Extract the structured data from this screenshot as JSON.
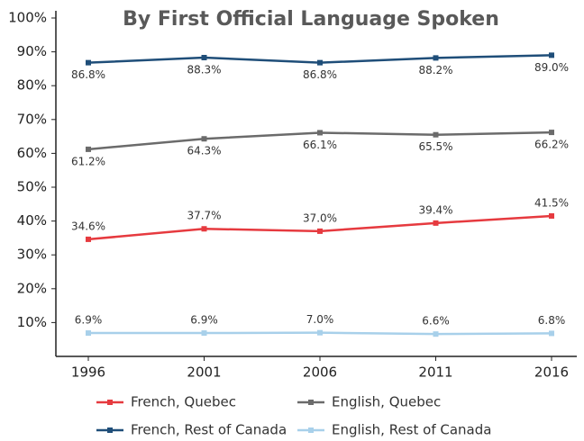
{
  "chart_data": {
    "type": "line",
    "title": "By First Official Language Spoken",
    "categories": [
      "1996",
      "2001",
      "2006",
      "2011",
      "2016"
    ],
    "series": [
      {
        "name": "French, Quebec",
        "color": "#e63a3f",
        "values": [
          34.6,
          37.7,
          37.0,
          39.4,
          41.5
        ],
        "value_labels": [
          "34.6%",
          "37.7%",
          "37.0%",
          "39.4%",
          "41.5%"
        ]
      },
      {
        "name": "English, Quebec",
        "color": "#6b6b6b",
        "values": [
          61.2,
          64.3,
          66.1,
          65.5,
          66.2
        ],
        "value_labels": [
          "61.2%",
          "64.3%",
          "66.1%",
          "65.5%",
          "66.2%"
        ]
      },
      {
        "name": "French, Rest of Canada",
        "color": "#1f4e79",
        "values": [
          86.8,
          88.3,
          86.8,
          88.2,
          89.0
        ],
        "value_labels": [
          "86.8%",
          "88.3%",
          "86.8%",
          "88.2%",
          "89.0%"
        ]
      },
      {
        "name": "English, Rest of Canada",
        "color": "#a8d0ea",
        "values": [
          6.9,
          6.9,
          7.0,
          6.6,
          6.8
        ],
        "value_labels": [
          "6.9%",
          "6.9%",
          "7.0%",
          "6.6%",
          "6.8%"
        ]
      }
    ],
    "ylim": [
      0,
      100
    ],
    "yticks": [
      {
        "value": 10,
        "label": "10%"
      },
      {
        "value": 20,
        "label": "20%"
      },
      {
        "value": 30,
        "label": "30%"
      },
      {
        "value": 40,
        "label": "40%"
      },
      {
        "value": 50,
        "label": "50%"
      },
      {
        "value": 60,
        "label": "60%"
      },
      {
        "value": 70,
        "label": "70%"
      },
      {
        "value": 80,
        "label": "80%"
      },
      {
        "value": 90,
        "label": "90%"
      },
      {
        "value": 100,
        "label": "100%"
      }
    ],
    "legend": "bottom",
    "grid": false
  }
}
